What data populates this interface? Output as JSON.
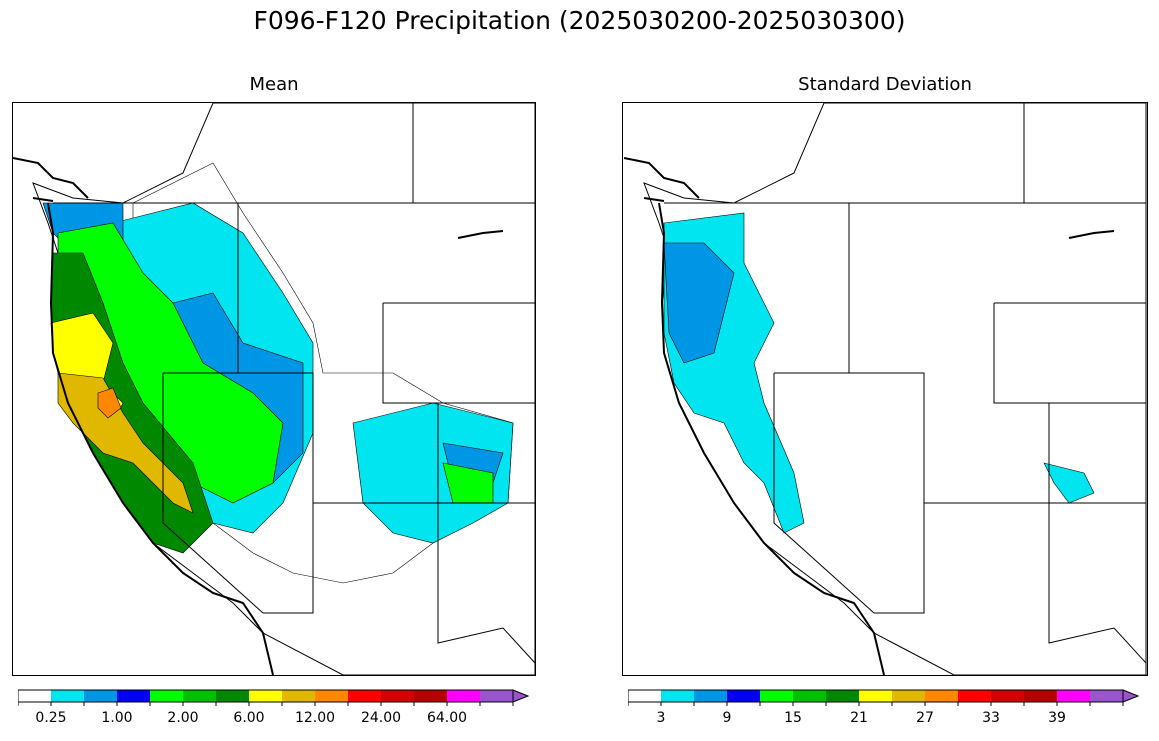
{
  "figure": {
    "title": "F096-F120 Precipitation (2025030200-2025030300)"
  },
  "panels": [
    {
      "title": "Mean",
      "colorbar": {
        "colors": [
          "#ffffff",
          "#00e5ef",
          "#0096e6",
          "#0000f0",
          "#00ff00",
          "#00c000",
          "#008800",
          "#ffff00",
          "#e0b800",
          "#ff8800",
          "#ff0000",
          "#d20000",
          "#b40000",
          "#ff00ff",
          "#9955cc"
        ],
        "tick_labels": [
          "0.25",
          "1.00",
          "2.00",
          "6.00",
          "12.00",
          "24.00",
          "64.00"
        ],
        "extend": "max"
      },
      "basins_fill": [
        {
          "color": "#00e5ef",
          "region": "interior-north"
        },
        {
          "color": "#0096e6",
          "region": "idaho-montana"
        },
        {
          "color": "#0000f0",
          "region": "washington-cascades"
        },
        {
          "color": "#00ff00",
          "region": "oregon-coast"
        },
        {
          "color": "#008800",
          "region": "coast-ranges"
        },
        {
          "color": "#ffff00",
          "region": "northern-california"
        },
        {
          "color": "#e0b800",
          "region": "sierra-nevada"
        },
        {
          "color": "#ff8800",
          "region": "shasta"
        }
      ]
    },
    {
      "title": "Standard Deviation",
      "colorbar": {
        "colors": [
          "#ffffff",
          "#00e5ef",
          "#0096e6",
          "#0000f0",
          "#00ff00",
          "#00c000",
          "#008800",
          "#ffff00",
          "#e0b800",
          "#ff8800",
          "#ff0000",
          "#d20000",
          "#b40000",
          "#ff00ff",
          "#9955cc"
        ],
        "tick_labels": [
          "3",
          "9",
          "15",
          "21",
          "27",
          "33",
          "39"
        ],
        "extend": "max"
      }
    }
  ]
}
